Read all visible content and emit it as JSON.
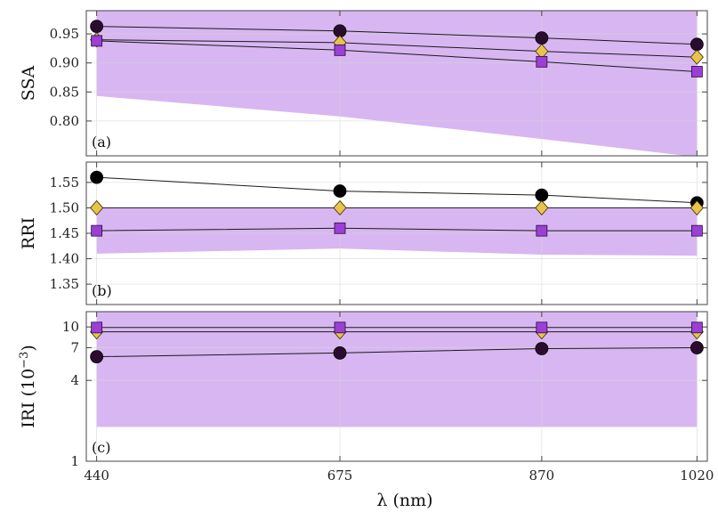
{
  "chart_data": [
    {
      "panel": "(a)",
      "type": "line",
      "ylabel": "SSA",
      "x": [
        440,
        675,
        870,
        1020
      ],
      "ylim": [
        0.74,
        0.99
      ],
      "yticks": [
        0.8,
        0.85,
        0.9,
        0.95
      ],
      "ytick_labels": [
        "0.80",
        "0.85",
        "0.90",
        "0.95"
      ],
      "grid": true,
      "band": {
        "upper": [
          0.99,
          0.99,
          0.99,
          0.99
        ],
        "lower": [
          0.843,
          0.808,
          0.769,
          0.738
        ],
        "color": "#d8b6f2"
      },
      "series": [
        {
          "marker": "circle",
          "color": "#2a0d2e",
          "values": [
            0.963,
            0.955,
            0.943,
            0.932
          ]
        },
        {
          "marker": "diamond",
          "color": "#e8c44a",
          "values": [
            0.94,
            0.935,
            0.92,
            0.91
          ]
        },
        {
          "marker": "square",
          "color": "#9b3fd6",
          "values": [
            0.938,
            0.922,
            0.902,
            0.885
          ]
        }
      ]
    },
    {
      "panel": "(b)",
      "type": "line",
      "ylabel": "RRI",
      "x": [
        440,
        675,
        870,
        1020
      ],
      "ylim": [
        1.31,
        1.59
      ],
      "yticks": [
        1.35,
        1.4,
        1.45,
        1.5,
        1.55
      ],
      "ytick_labels": [
        "1.35",
        "1.40",
        "1.45",
        "1.50",
        "1.55"
      ],
      "grid": true,
      "band": {
        "upper": [
          1.5,
          1.5,
          1.5,
          1.5
        ],
        "lower": [
          1.41,
          1.42,
          1.408,
          1.406
        ],
        "color": "#d8b6f2"
      },
      "series": [
        {
          "marker": "circle",
          "color": "#000000",
          "values": [
            1.56,
            1.533,
            1.525,
            1.51
          ]
        },
        {
          "marker": "diamond",
          "color": "#e8c44a",
          "values": [
            1.5,
            1.5,
            1.5,
            1.5
          ]
        },
        {
          "marker": "square",
          "color": "#9b3fd6",
          "values": [
            1.455,
            1.46,
            1.455,
            1.455
          ]
        }
      ]
    },
    {
      "panel": "(c)",
      "type": "line",
      "ylabel": "IRI (10",
      "ylabel_sup": "−3",
      "ylabel_end": ")",
      "yscale": "log",
      "x": [
        440,
        675,
        870,
        1020
      ],
      "ylim": [
        1,
        13
      ],
      "yticks": [
        1,
        4,
        7,
        10
      ],
      "ytick_labels": [
        "1",
        "4",
        "7",
        "10"
      ],
      "grid": true,
      "band": {
        "upper": [
          13,
          13,
          13,
          13
        ],
        "lower": [
          1.8,
          1.8,
          1.8,
          1.8
        ],
        "color": "#d8b6f2"
      },
      "series": [
        {
          "marker": "circle",
          "color": "#2a0d2e",
          "values": [
            6.0,
            6.4,
            6.9,
            7.0
          ]
        },
        {
          "marker": "diamond",
          "color": "#e8c44a",
          "values": [
            9.2,
            9.2,
            9.2,
            9.2
          ]
        },
        {
          "marker": "square",
          "color": "#9b3fd6",
          "values": [
            9.9,
            9.9,
            9.9,
            9.9
          ]
        }
      ]
    }
  ],
  "xaxis": {
    "label": "λ (nm)",
    "ticks": [
      440,
      675,
      870,
      1020
    ],
    "tick_labels": [
      "440",
      "675",
      "870",
      "1020"
    ],
    "xlim": [
      430,
      1030
    ]
  },
  "colors": {
    "band": "#d8b6f2",
    "grid": "#d6d6d6",
    "axis": "#444444",
    "line": "#1a1a1a"
  }
}
